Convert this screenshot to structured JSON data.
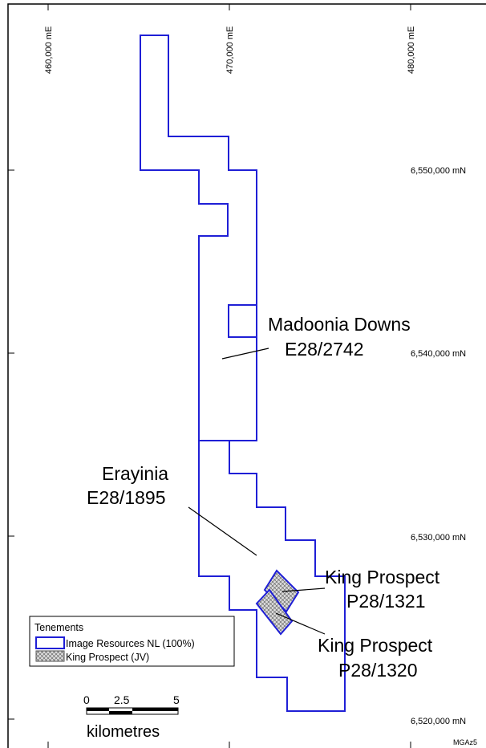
{
  "map": {
    "easting_labels": [
      "460,000 mE",
      "470,000 mE",
      "480,000 mE"
    ],
    "northing_labels": [
      "6,550,000 mN",
      "6,540,000 mN",
      "6,530,000 mN",
      "6,520,000 mN"
    ],
    "projection": "MGAz5",
    "tenements": [
      {
        "name": "Madoonia Downs",
        "id": "E28/2742"
      },
      {
        "name": "Erayinia",
        "id": "E28/1895"
      },
      {
        "name": "King Prospect",
        "id": "P28/1321"
      },
      {
        "name": "King Prospect",
        "id": "P28/1320"
      }
    ],
    "legend": {
      "title": "Tenements",
      "items": [
        {
          "label": "Image Resources NL (100%)",
          "style": "blue-outline"
        },
        {
          "label": "King Prospect (JV)",
          "style": "crosshatch"
        }
      ]
    },
    "scale_bar": {
      "ticks": [
        "0",
        "2.5",
        "5"
      ],
      "unit": "kilometres"
    },
    "colors": {
      "tenement_outline": "#1f1fd6",
      "frame": "#000000",
      "hatch_fill": "#d8d8d8"
    }
  }
}
